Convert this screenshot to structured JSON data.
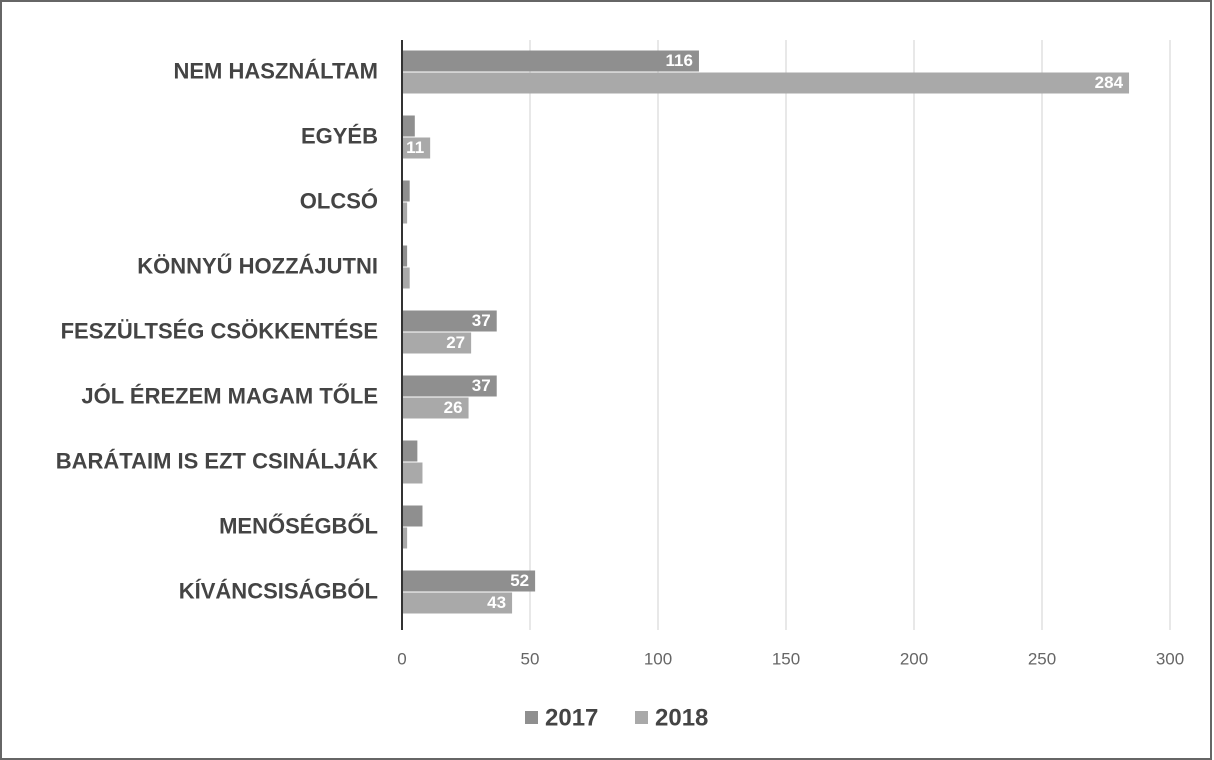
{
  "chart_data": {
    "type": "hbar",
    "categories": [
      "NEM HASZNÁLTAM",
      "EGYÉB",
      "OLCSÓ",
      "KÖNNYŰ HOZZÁJUTNI",
      "FESZÜLTSÉG CSÖKKENTÉSE",
      "JÓL ÉREZEM MAGAM TŐLE",
      "BARÁTAIM IS EZT CSINÁLJÁK",
      "MENŐSÉGBŐL",
      "KÍVÁNCSISÁGBÓL"
    ],
    "series": [
      {
        "name": "2017",
        "color": "#8f8f8f",
        "values": [
          116,
          5,
          3,
          2,
          37,
          37,
          6,
          8,
          52
        ]
      },
      {
        "name": "2018",
        "color": "#a9a9a9",
        "values": [
          284,
          11,
          2,
          3,
          27,
          26,
          8,
          2,
          43
        ]
      }
    ],
    "xlim": [
      0,
      300
    ],
    "xticks": [
      0,
      50,
      100,
      150,
      200,
      250,
      300
    ],
    "grid": true,
    "legend": "bottom"
  }
}
